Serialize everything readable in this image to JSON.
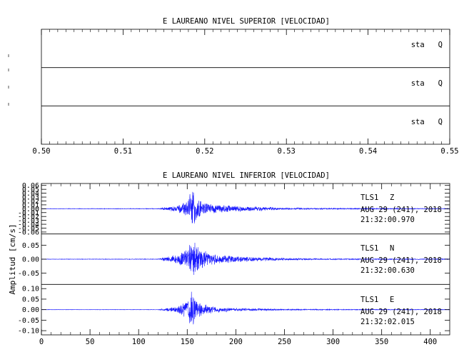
{
  "chart_data": [
    {
      "type": "line",
      "title": "E LAUREANO NIVEL SUPERIOR [VELOCIDAD]",
      "xlim": [
        0.5,
        0.55
      ],
      "x_ticks": [
        "0.50",
        "0.51",
        "0.52",
        "0.53",
        "0.54",
        "0.55"
      ],
      "ylabel": "",
      "panels": [
        {
          "label": "sta   Q",
          "values": []
        },
        {
          "label": "sta   Q",
          "values": []
        },
        {
          "label": "sta   Q",
          "values": []
        }
      ]
    },
    {
      "type": "line",
      "title": "E LAUREANO NIVEL INFERIOR [VELOCIDAD]",
      "xlim": [
        0,
        420
      ],
      "x_ticks": [
        "0",
        "50",
        "100",
        "150",
        "200",
        "250",
        "300",
        "350",
        "400"
      ],
      "ylabel": "Amplitud [cm/s]",
      "line_color": "#1a1aff",
      "panels": [
        {
          "station": "TLS1",
          "component": "Z",
          "date": "AUG 29 (241), 2018",
          "time": "21:32:00.970",
          "ylim": [
            -0.065,
            0.065
          ],
          "y_ticks": [
            "0.06",
            "0.05",
            "0.04",
            "0.03",
            "0.02",
            "0.01",
            "0.00",
            "-0.01",
            "-0.02",
            "-0.03",
            "-0.04",
            "-0.05",
            "-0.06"
          ],
          "y_tick_values": [
            0.06,
            0.05,
            0.04,
            0.03,
            0.02,
            0.01,
            0.0,
            -0.01,
            -0.02,
            -0.03,
            -0.04,
            -0.05,
            -0.06
          ],
          "envelope": {
            "x": [
              0,
              120,
              128,
              140,
              150,
              155,
              158,
              165,
              180,
              200,
              250,
              300,
              400,
              420
            ],
            "amplitude": [
              0.0006,
              0.0008,
              0.005,
              0.009,
              0.022,
              0.058,
              0.04,
              0.018,
              0.012,
              0.008,
              0.0025,
              0.0015,
              0.001,
              0.001
            ]
          }
        },
        {
          "station": "TLS1",
          "component": "N",
          "date": "AUG 29 (241), 2018",
          "time": "21:32:00.630",
          "ylim": [
            -0.09,
            0.09
          ],
          "y_ticks": [
            "0.05",
            "0.00",
            "-0.05"
          ],
          "y_tick_values": [
            0.05,
            0.0,
            -0.05
          ],
          "envelope": {
            "x": [
              0,
              120,
              128,
              140,
              150,
              155,
              158,
              165,
              180,
              200,
              250,
              300,
              400,
              420
            ],
            "amplitude": [
              0.0008,
              0.001,
              0.01,
              0.018,
              0.04,
              0.085,
              0.07,
              0.035,
              0.02,
              0.012,
              0.004,
              0.002,
              0.0015,
              0.0015
            ]
          }
        },
        {
          "station": "TLS1",
          "component": "E",
          "date": "AUG 29 (241), 2018",
          "time": "21:32:02.015",
          "ylim": [
            -0.12,
            0.12
          ],
          "y_ticks": [
            "0.10",
            "0.05",
            "0.00",
            "-0.05",
            "-0.10"
          ],
          "y_tick_values": [
            0.1,
            0.05,
            0.0,
            -0.05,
            -0.1
          ],
          "envelope": {
            "x": [
              0,
              120,
              128,
              140,
              150,
              155,
              158,
              165,
              180,
              200,
              250,
              300,
              400,
              420
            ],
            "amplitude": [
              0.0008,
              0.001,
              0.008,
              0.015,
              0.05,
              0.11,
              0.07,
              0.03,
              0.015,
              0.008,
              0.003,
              0.002,
              0.0015,
              0.0015
            ]
          }
        }
      ]
    }
  ]
}
